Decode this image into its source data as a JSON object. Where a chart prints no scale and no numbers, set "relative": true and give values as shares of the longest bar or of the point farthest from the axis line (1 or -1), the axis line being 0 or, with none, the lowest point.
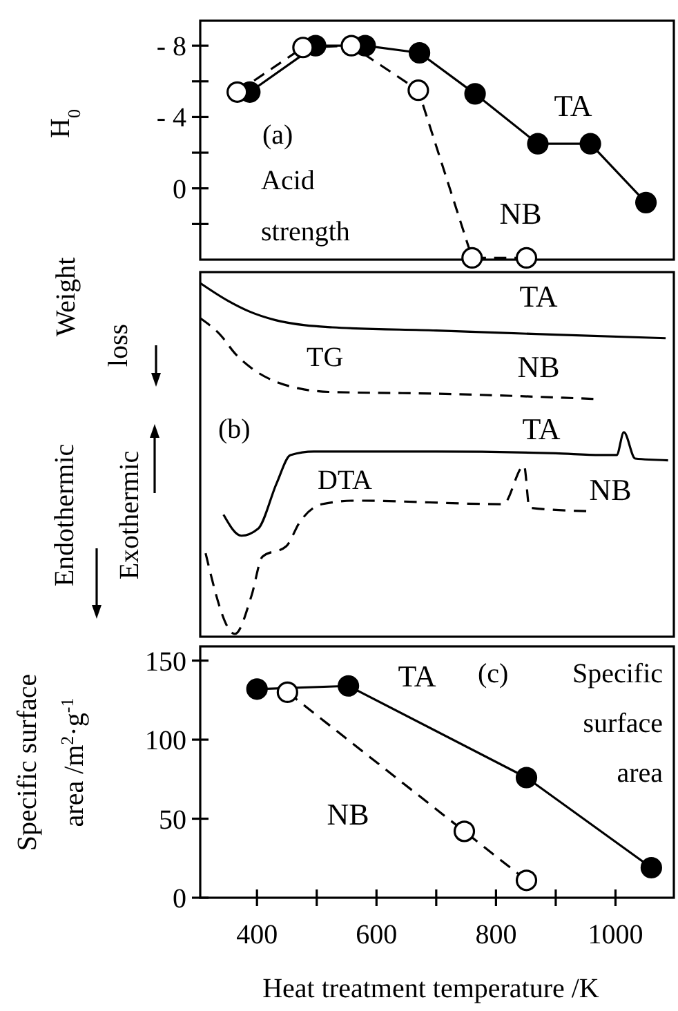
{
  "chart_data": [
    {
      "type": "line",
      "ylabel": "H$_{0}$",
      "annotations": [
        "(a)",
        "Acid strength"
      ],
      "xlim": [
        305,
        1100
      ],
      "ylim": [
        4,
        -9.4
      ],
      "yticks": [
        {
          "value": -8,
          "label": "- 8"
        },
        {
          "value": -6,
          "label": null
        },
        {
          "value": -4,
          "label": "- 4"
        },
        {
          "value": -2,
          "label": null
        },
        0,
        {
          "value": 2,
          "label": null
        }
      ],
      "tick_labels": "y",
      "marker": "circle",
      "series": [
        {
          "name": "TA",
          "color": "#000000",
          "line_style": "solid",
          "x": [
            388,
            498,
            581,
            672,
            765,
            870,
            958,
            1051
          ],
          "values": [
            -5.4,
            -8,
            -8,
            -7.6,
            -5.3,
            -2.5,
            -2.5,
            0.8
          ]
        },
        {
          "name": "NB",
          "color": "#000000",
          "line_style": "dashed",
          "x": [
            367,
            477,
            558,
            670,
            760,
            851
          ],
          "values": [
            -5.4,
            -7.9,
            -8,
            -5.5,
            3.9,
            3.9
          ]
        }
      ]
    },
    {
      "type": "line",
      "relative": true,
      "ylabel": "Weight loss",
      "annotations": [
        "TG",
        "DTA",
        "(b)",
        "Endothermic",
        "Exothermic"
      ],
      "xlim": [
        305,
        1100
      ],
      "tick_labels": false,
      "marker": "none",
      "series": [
        {
          "name": "TA",
          "color": "#000000",
          "line_style": "solid",
          "x": [
            305,
            351,
            386,
            430,
            480,
            526,
            700,
            900,
            1084
          ],
          "values": [
            1.0,
            0.95,
            0.92,
            0.895,
            0.88,
            0.874,
            0.865,
            0.853,
            0.843
          ]
        },
        {
          "name": "NB",
          "color": "#000000",
          "line_style": "dashed",
          "x": [
            305,
            340,
            363,
            393,
            430,
            470,
            520,
            700,
            963
          ],
          "values": [
            0.9,
            0.85,
            0.8,
            0.755,
            0.72,
            0.7,
            0.69,
            0.685,
            0.67
          ]
        },
        {
          "name": "TA",
          "color": "#000000",
          "line_style": "solid",
          "x": [
            344,
            374,
            402,
            433,
            456,
            495,
            700,
            900,
            975,
            1002,
            1014,
            1033,
            1088
          ],
          "values": [
            0.34,
            0.28,
            0.3,
            0.43,
            0.51,
            0.52,
            0.52,
            0.515,
            0.51,
            0.51,
            0.575,
            0.5,
            0.495
          ]
        },
        {
          "name": "NB",
          "color": "#000000",
          "line_style": "dashed",
          "x": [
            314,
            363,
            391,
            409,
            449,
            472,
            509,
            565,
            812,
            847,
            856,
            951
          ],
          "values": [
            0.23,
            0.0,
            0.11,
            0.22,
            0.25,
            0.32,
            0.37,
            0.38,
            0.37,
            0.48,
            0.36,
            0.35
          ]
        }
      ]
    },
    {
      "type": "line",
      "xlabel": "Heat treatment temperature /K",
      "ylabel": "Specific surface area /m$^{2}$·g$^{-1}$",
      "annotations": [
        "(c)",
        "Specific surface area"
      ],
      "xlim": [
        305,
        1100
      ],
      "ylim": [
        0,
        159
      ],
      "xticks": [
        400,
        {
          "value": 500,
          "label": null
        },
        600,
        {
          "value": 700,
          "label": null
        },
        800,
        {
          "value": 900,
          "label": null
        },
        1000
      ],
      "yticks": [
        0,
        50,
        100,
        150
      ],
      "marker": "circle",
      "series": [
        {
          "name": "TA",
          "color": "#000000",
          "line_style": "solid",
          "x": [
            400,
            553,
            851,
            1060
          ],
          "values": [
            132,
            134,
            76,
            19
          ]
        },
        {
          "name": "NB",
          "color": "#000000",
          "line_style": "dashed",
          "x": [
            451,
            747,
            851
          ],
          "values": [
            130,
            42,
            11
          ]
        }
      ]
    }
  ]
}
